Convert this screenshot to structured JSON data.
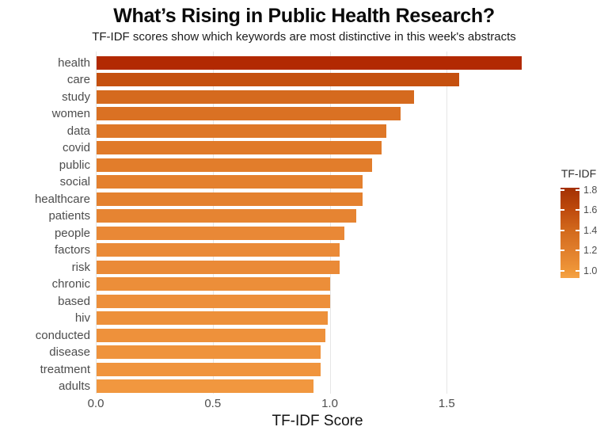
{
  "header": {
    "title": "What’s Rising in Public Health Research?",
    "subtitle": "TF-IDF scores show which keywords are most distinctive in this week's abstracts"
  },
  "colors": {
    "background": "#ffffff",
    "gridline": "#e6e6e6",
    "axis_text": "#4d4d4d",
    "title_text": "#0a0a0a"
  },
  "chart_data": {
    "type": "bar",
    "orientation": "horizontal",
    "title": "What’s Rising in Public Health Research?",
    "subtitle": "TF-IDF scores show which keywords are most distinctive in this week's abstracts",
    "xlabel": "TF-IDF Score",
    "ylabel": "",
    "xlim": [
      0,
      1.9
    ],
    "grid": true,
    "x_ticks": [
      {
        "label": "0.0",
        "value": 0.0
      },
      {
        "label": "0.5",
        "value": 0.5
      },
      {
        "label": "1.0",
        "value": 1.0
      },
      {
        "label": "1.5",
        "value": 1.5
      }
    ],
    "categories": [
      "health",
      "care",
      "study",
      "women",
      "data",
      "covid",
      "public",
      "social",
      "healthcare",
      "patients",
      "people",
      "factors",
      "risk",
      "chronic",
      "based",
      "hiv",
      "conducted",
      "disease",
      "treatment",
      "adults"
    ],
    "values": [
      1.82,
      1.55,
      1.36,
      1.3,
      1.24,
      1.22,
      1.18,
      1.14,
      1.14,
      1.11,
      1.06,
      1.04,
      1.04,
      1.0,
      1.0,
      0.99,
      0.98,
      0.96,
      0.96,
      0.93
    ],
    "bar_colors": [
      "#b22902",
      "#c5500f",
      "#d56a1e",
      "#da7123",
      "#de7727",
      "#e07a29",
      "#e27d2b",
      "#e4802e",
      "#e4812f",
      "#e68432",
      "#e98836",
      "#ea8a37",
      "#ea8a37",
      "#ec8e39",
      "#ed8f3a",
      "#ed903a",
      "#ee913b",
      "#ef933c",
      "#f0943d",
      "#f1973f"
    ],
    "legend": {
      "type": "colorbar",
      "position": "right",
      "title": "TF-IDF",
      "domain": [
        0.93,
        1.82
      ],
      "ticks": [
        {
          "label": "1.8",
          "value": 1.8
        },
        {
          "label": "1.6",
          "value": 1.6
        },
        {
          "label": "1.4",
          "value": 1.4
        },
        {
          "label": "1.2",
          "value": 1.2
        },
        {
          "label": "1.0",
          "value": 1.0
        }
      ],
      "gradient_stops": [
        {
          "offset": 0,
          "color": "#a33003"
        },
        {
          "offset": 0.25,
          "color": "#bf4b0d"
        },
        {
          "offset": 0.47,
          "color": "#d2691c"
        },
        {
          "offset": 0.7,
          "color": "#e17f2c"
        },
        {
          "offset": 0.93,
          "color": "#f09839"
        },
        {
          "offset": 1,
          "color": "#f5a347"
        }
      ]
    }
  }
}
